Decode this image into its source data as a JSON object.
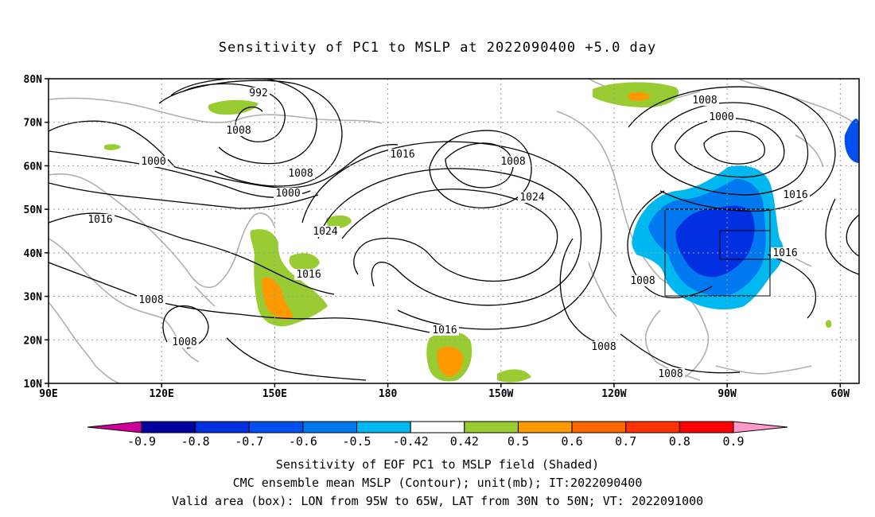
{
  "title": "Sensitivity of PC1 to MSLP at 2022090400 +5.0 day",
  "map": {
    "lat_ticks": [
      "80N",
      "70N",
      "60N",
      "50N",
      "40N",
      "30N",
      "20N",
      "10N"
    ],
    "lon_ticks": [
      "90E",
      "120E",
      "150E",
      "180",
      "150W",
      "120W",
      "90W",
      "60W"
    ],
    "lon_range": [
      90,
      305
    ],
    "lat_range": [
      10,
      80
    ],
    "valid_box": {
      "lon": [
        265,
        295
      ],
      "lat": [
        30,
        50
      ]
    },
    "contour_labels": [
      "992",
      "1008",
      "1000",
      "1016",
      "1008",
      "1000",
      "1008",
      "1016",
      "1000",
      "1024",
      "1008",
      "1024",
      "1016",
      "1008",
      "1016",
      "1016",
      "1008",
      "1016",
      "1008",
      "1008",
      "1008",
      "1016"
    ],
    "land_color": "#b0b0b0",
    "contour_color": "#000000"
  },
  "colorbar": {
    "labels": [
      "-0.9",
      "-0.8",
      "-0.7",
      "-0.6",
      "-0.5",
      "-0.42",
      "0.42",
      "0.5",
      "0.6",
      "0.7",
      "0.8",
      "0.9"
    ],
    "colors": [
      "#0000a0",
      "#0030e0",
      "#0050f0",
      "#0078f0",
      "#00b8f0",
      "#ffffff",
      "#99cc33",
      "#ff9900",
      "#ff6600",
      "#ff3300",
      "#ff0000"
    ],
    "low_end_color": "#cc0099",
    "high_end_color": "#ff99cc"
  },
  "captions": [
    "Sensitivity of EOF PC1 to MSLP field (Shaded)",
    "CMC ensemble mean MSLP (Contour); unit(mb); IT:2022090400",
    "Valid area (box): LON from 95W to 65W, LAT from 30N to 50N; VT: 2022091000"
  ]
}
